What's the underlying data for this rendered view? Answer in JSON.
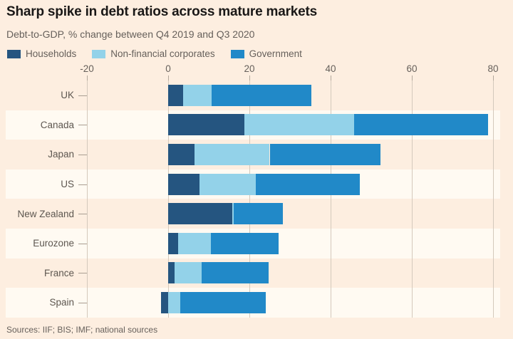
{
  "header": {
    "title": "Sharp spike in debt ratios across mature markets",
    "subtitle": "Debt-to-GDP, % change between Q4 2019 and Q3 2020"
  },
  "footer": {
    "source": "Sources: IIF; BIS; IMF; national sources"
  },
  "colors": {
    "background": "#fdeee0",
    "row_band": "#fffaf2",
    "households": "#255580",
    "non_financial_corporates": "#93d2e9",
    "government": "#2189c8",
    "gridline": "#d4c9bc",
    "title_text": "#1a1817",
    "muted_text": "#66605b"
  },
  "chart_data": {
    "type": "bar",
    "orientation": "horizontal",
    "stacked": true,
    "title": "Sharp spike in debt ratios across mature markets",
    "subtitle": "Debt-to-GDP, % change between Q4 2019 and Q3 2020",
    "legend_position": "top",
    "grid": true,
    "categories": [
      "UK",
      "Canada",
      "Japan",
      "US",
      "New Zealand",
      "Eurozone",
      "France",
      "Spain"
    ],
    "series": [
      {
        "name": "Households",
        "color": "#255580",
        "values": [
          3.7,
          18.8,
          6.5,
          7.7,
          15.8,
          2.5,
          1.6,
          -1.8
        ]
      },
      {
        "name": "Non-financial corporates",
        "color": "#93d2e9",
        "values": [
          7.0,
          27.0,
          18.5,
          13.9,
          0.4,
          8.0,
          6.7,
          3.0
        ]
      },
      {
        "name": "Government",
        "color": "#2189c8",
        "values": [
          24.5,
          33.0,
          27.3,
          25.6,
          12.0,
          16.7,
          16.5,
          21.0
        ]
      }
    ],
    "totals": [
      35.2,
      78.8,
      52.3,
      47.2,
      28.2,
      27.2,
      24.8,
      22.2
    ],
    "x_axis": {
      "min": -20,
      "max": 80,
      "ticks": [
        -20,
        0,
        20,
        40,
        60,
        80
      ]
    },
    "banded_row_indices": [
      1,
      3,
      5,
      7
    ]
  }
}
